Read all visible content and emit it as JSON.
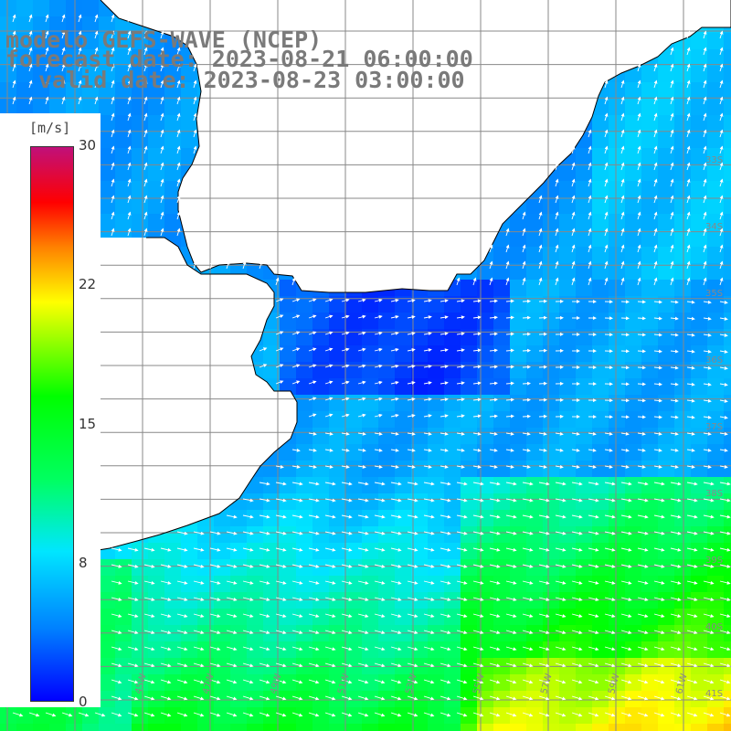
{
  "title": {
    "line1": "modelo GEFS-WAVE (NCEP)",
    "line2": "forecast date: 2023-08-21 06:00:00",
    "line3": "valid date: 2023-08-23 03:00:00"
  },
  "legend": {
    "unit": "[m/s]",
    "ticks": [
      "30",
      "22",
      "15",
      "8",
      "0"
    ],
    "tick_values": [
      30,
      22,
      15,
      8,
      0
    ],
    "min": 0,
    "max": 30,
    "colors": [
      "#0000ff",
      "#0080ff",
      "#00e6ff",
      "#00ff60",
      "#00ff00",
      "#ffff00",
      "#ff8000",
      "#ff0000",
      "#c0107a"
    ]
  },
  "map": {
    "variable": "wind speed and direction",
    "lat_labels": [
      "33S",
      "34S",
      "35S",
      "36S",
      "37S",
      "38S",
      "39S",
      "40S",
      "41S"
    ],
    "lon_labels": [
      "61W",
      "59W",
      "57W",
      "55W",
      "53W",
      "51W",
      "49W",
      "47W",
      "45W"
    ],
    "land_color": "#ffffff",
    "grid_color": "#888888",
    "coast_color": "#000000",
    "arrow_color": "#ffffff"
  }
}
